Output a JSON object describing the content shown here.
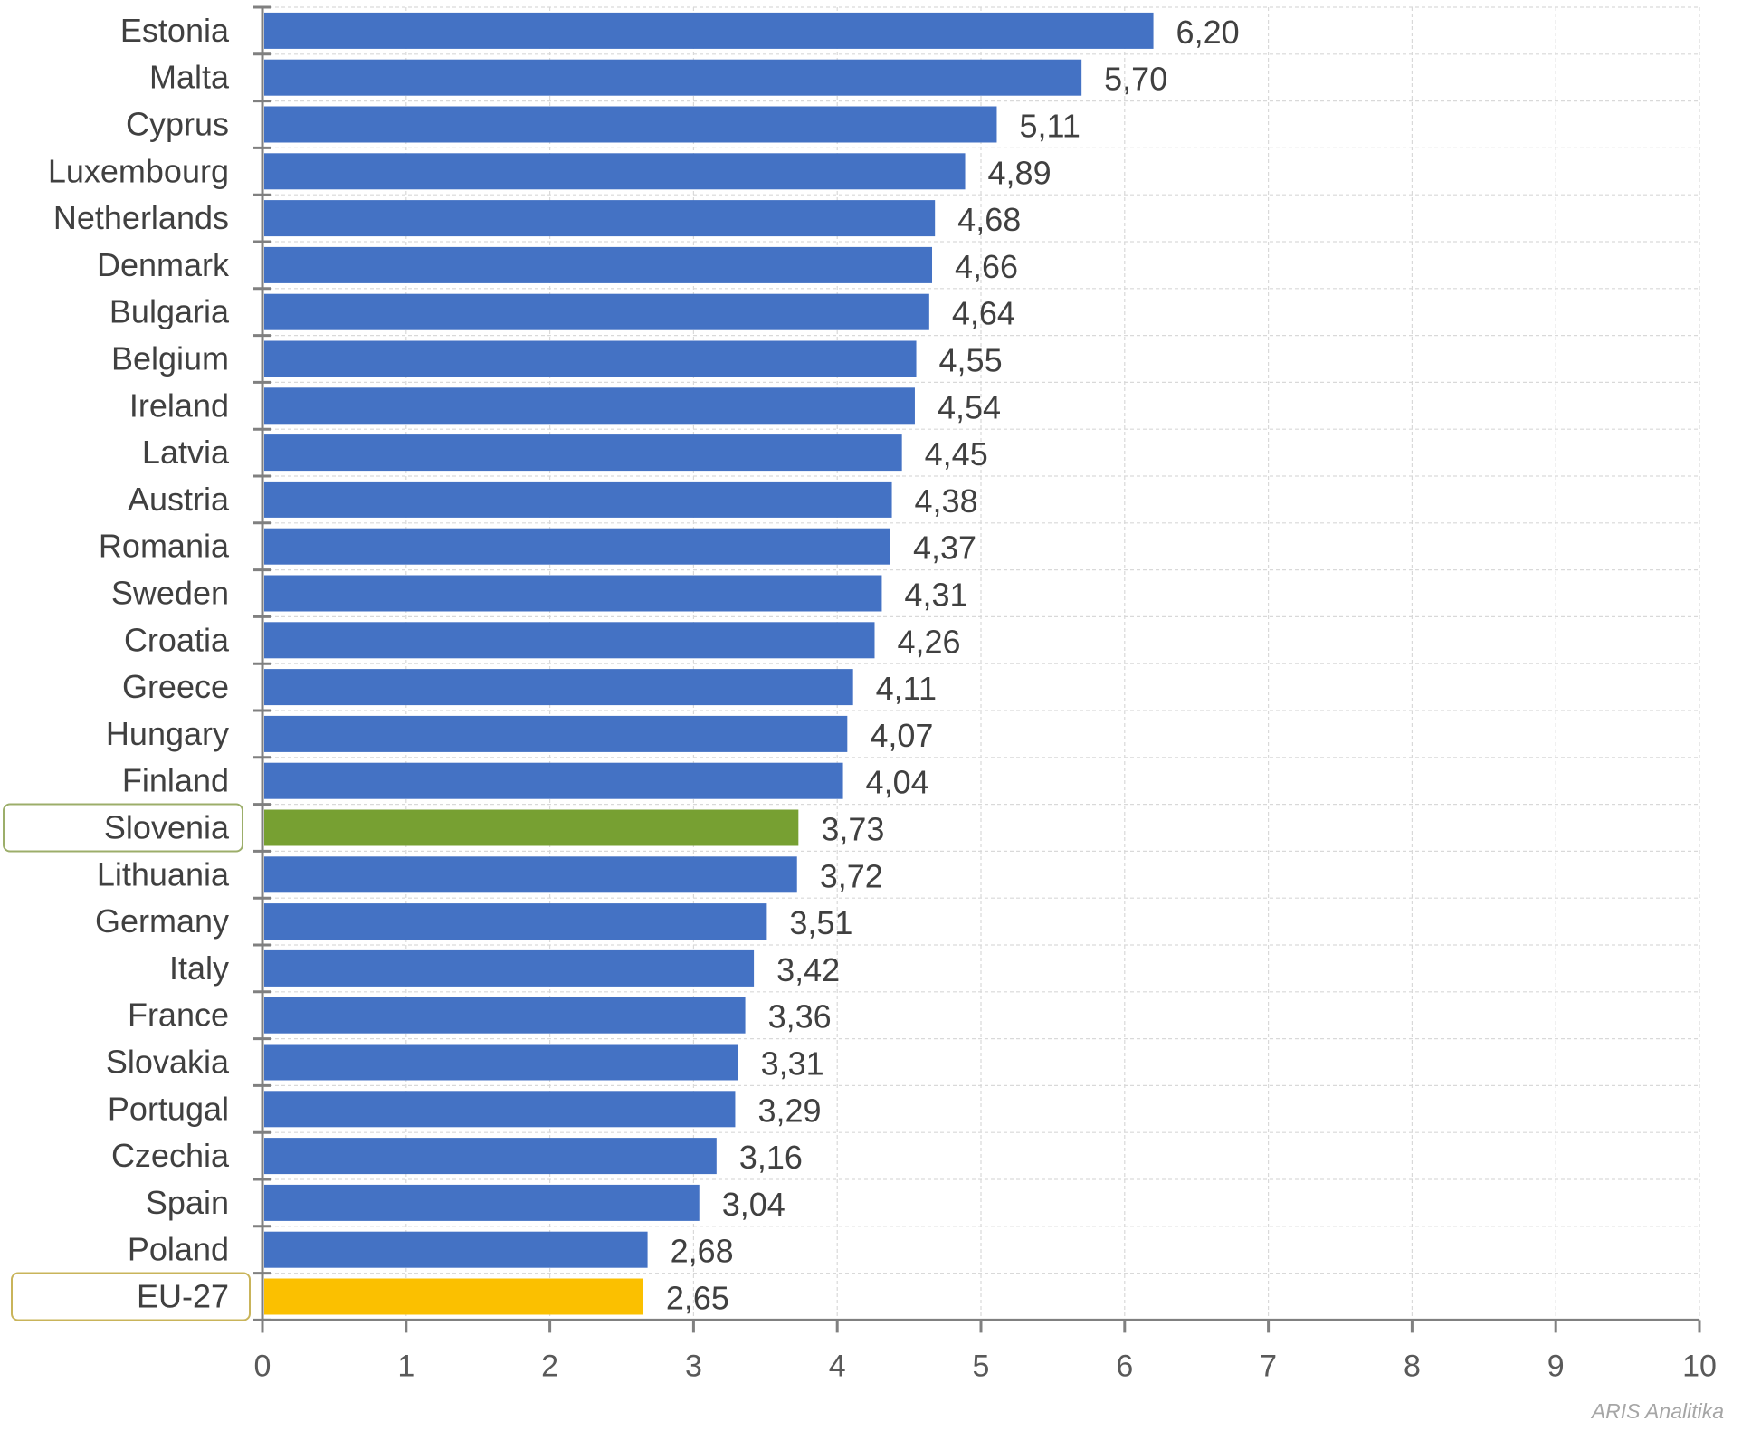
{
  "chart_data": {
    "type": "bar",
    "orientation": "horizontal",
    "categories": [
      "Estonia",
      "Malta",
      "Cyprus",
      "Luxembourg",
      "Netherlands",
      "Denmark",
      "Bulgaria",
      "Belgium",
      "Ireland",
      "Latvia",
      "Austria",
      "Romania",
      "Sweden",
      "Croatia",
      "Greece",
      "Hungary",
      "Finland",
      "Slovenia",
      "Lithuania",
      "Germany",
      "Italy",
      "France",
      "Slovakia",
      "Portugal",
      "Czechia",
      "Spain",
      "Poland",
      "EU-27"
    ],
    "values": [
      6.2,
      5.7,
      5.11,
      4.89,
      4.68,
      4.66,
      4.64,
      4.55,
      4.54,
      4.45,
      4.38,
      4.37,
      4.31,
      4.26,
      4.11,
      4.07,
      4.04,
      3.73,
      3.72,
      3.51,
      3.42,
      3.36,
      3.31,
      3.29,
      3.16,
      3.04,
      2.68,
      2.65
    ],
    "value_labels": [
      "6,20",
      "5,70",
      "5,11",
      "4,89",
      "4,68",
      "4,66",
      "4,64",
      "4,55",
      "4,54",
      "4,45",
      "4,38",
      "4,37",
      "4,31",
      "4,26",
      "4,11",
      "4,07",
      "4,04",
      "3,73",
      "3,72",
      "3,51",
      "3,42",
      "3,36",
      "3,31",
      "3,29",
      "3,16",
      "3,04",
      "2,68",
      "2,65"
    ],
    "xlim": [
      0,
      10
    ],
    "xticks": [
      "0",
      "1",
      "2",
      "3",
      "4",
      "5",
      "6",
      "7",
      "8",
      "9",
      "10"
    ],
    "grid": true,
    "colors": {
      "default": "#4472c4",
      "Slovenia": "#77a032",
      "EU-27": "#fbc000"
    },
    "highlighted_categories": [
      "Slovenia",
      "EU-27"
    ]
  },
  "credit": "ARIS Analitika"
}
